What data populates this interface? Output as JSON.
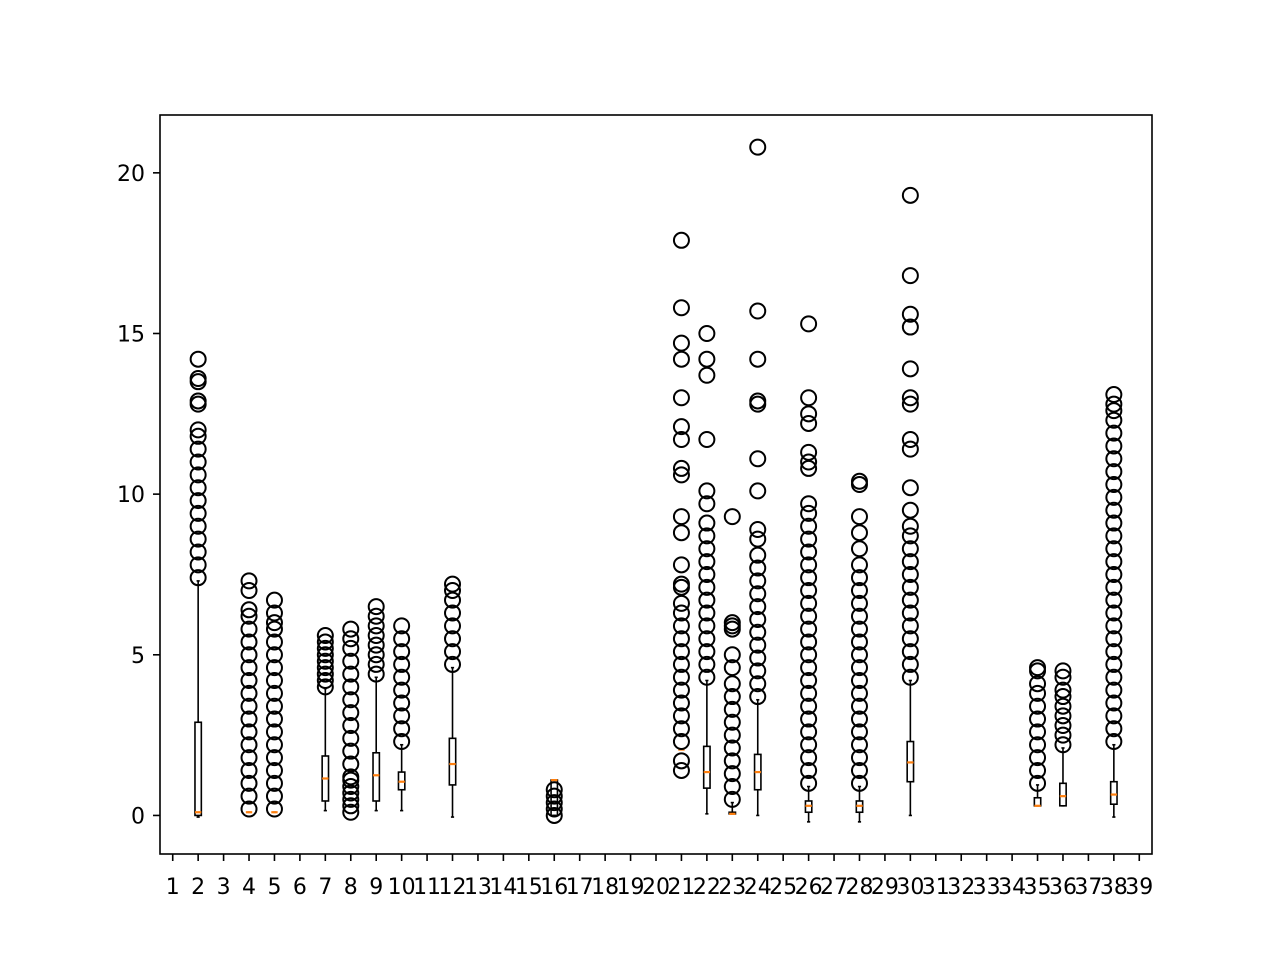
{
  "chart_data": {
    "type": "box",
    "title": "",
    "xlabel": "",
    "ylabel": "",
    "ylim": [
      -1.2,
      21.8
    ],
    "yticks": [
      0,
      5,
      10,
      15,
      20
    ],
    "xticks": [
      "1",
      "2",
      "3",
      "4",
      "5",
      "6",
      "7",
      "8",
      "9",
      "10",
      "11",
      "12",
      "13",
      "14",
      "15",
      "16",
      "17",
      "18",
      "19",
      "20",
      "21",
      "22",
      "23",
      "24",
      "25",
      "26",
      "27",
      "28",
      "29",
      "30",
      "31",
      "32",
      "33",
      "34",
      "35",
      "36",
      "37",
      "38",
      "39"
    ],
    "grid": false,
    "colors": {
      "box": "#000000",
      "median": "#ff7f0e",
      "flier": "#000000"
    },
    "boxes": [
      {
        "x": 2,
        "whislo": -0.05,
        "q1": 0.0,
        "med": 0.1,
        "q3": 2.9,
        "whishi": 7.3,
        "fliers_low": [],
        "fliers_high": [
          7.4,
          7.8,
          8.2,
          8.6,
          9.0,
          9.4,
          9.8,
          10.2,
          10.6,
          11.0,
          11.4,
          11.8,
          12.0,
          12.8,
          12.9,
          13.5,
          13.6,
          14.2
        ]
      },
      {
        "x": 4,
        "whislo": 0.1,
        "q1": 0.1,
        "med": 0.1,
        "q3": 0.1,
        "whishi": 0.1,
        "fliers_low": [],
        "fliers_high": [
          0.2,
          0.6,
          1.0,
          1.4,
          1.8,
          2.2,
          2.6,
          3.0,
          3.4,
          3.8,
          4.2,
          4.6,
          5.0,
          5.4,
          5.8,
          6.2,
          6.4,
          7.0,
          7.3
        ]
      },
      {
        "x": 5,
        "whislo": 0.1,
        "q1": 0.1,
        "med": 0.1,
        "q3": 0.1,
        "whishi": 0.1,
        "fliers_low": [],
        "fliers_high": [
          0.2,
          0.6,
          1.0,
          1.4,
          1.8,
          2.2,
          2.6,
          3.0,
          3.4,
          3.8,
          4.2,
          4.6,
          5.0,
          5.4,
          5.8,
          6.0,
          6.3,
          6.7
        ]
      },
      {
        "x": 7,
        "whislo": 0.15,
        "q1": 0.45,
        "med": 1.15,
        "q3": 1.85,
        "whishi": 3.95,
        "fliers_low": [],
        "fliers_high": [
          4.0,
          4.2,
          4.4,
          4.6,
          4.8,
          5.0,
          5.2,
          5.4,
          5.6
        ]
      },
      {
        "x": 8,
        "whislo": 1.4,
        "q1": 1.4,
        "med": 1.4,
        "q3": 1.4,
        "whishi": 1.4,
        "fliers_low": [
          0.1,
          0.3,
          0.5,
          0.7,
          0.9,
          1.1,
          1.2
        ],
        "fliers_high": [
          1.6,
          2.0,
          2.4,
          2.8,
          3.2,
          3.6,
          4.0,
          4.4,
          4.8,
          5.2,
          5.5,
          5.8
        ]
      },
      {
        "x": 9,
        "whislo": 0.15,
        "q1": 0.45,
        "med": 1.25,
        "q3": 1.95,
        "whishi": 4.3,
        "fliers_low": [],
        "fliers_high": [
          4.4,
          4.7,
          5.0,
          5.3,
          5.6,
          5.9,
          6.2,
          6.5
        ]
      },
      {
        "x": 10,
        "whislo": 0.15,
        "q1": 0.8,
        "med": 1.05,
        "q3": 1.35,
        "whishi": 2.2,
        "fliers_low": [],
        "fliers_high": [
          2.3,
          2.7,
          3.1,
          3.5,
          3.9,
          4.3,
          4.7,
          5.1,
          5.5,
          5.9
        ]
      },
      {
        "x": 12,
        "whislo": -0.05,
        "q1": 0.95,
        "med": 1.6,
        "q3": 2.4,
        "whishi": 4.6,
        "fliers_low": [],
        "fliers_high": [
          4.7,
          5.1,
          5.5,
          5.9,
          6.3,
          6.7,
          7.0,
          7.2
        ]
      },
      {
        "x": 16,
        "whislo": 0.0,
        "q1": 0.0,
        "med": 1.1,
        "q3": 1.1,
        "whishi": 1.1,
        "fliers_low": [],
        "fliers_high": [
          0.0,
          0.2,
          0.4,
          0.6,
          0.8
        ]
      },
      {
        "x": 21,
        "whislo": 2.05,
        "q1": 2.05,
        "med": 2.05,
        "q3": 2.05,
        "whishi": 2.05,
        "fliers_low": [
          1.4,
          1.7
        ],
        "fliers_high": [
          2.3,
          2.7,
          3.1,
          3.5,
          3.9,
          4.3,
          4.7,
          5.1,
          5.5,
          5.9,
          6.3,
          6.6,
          7.1,
          7.2,
          7.8,
          8.8,
          9.3,
          10.6,
          10.8,
          11.7,
          12.1,
          13.0,
          14.2,
          14.7,
          15.8,
          17.9
        ]
      },
      {
        "x": 22,
        "whislo": 0.05,
        "q1": 0.85,
        "med": 1.35,
        "q3": 2.15,
        "whishi": 4.2,
        "fliers_low": [],
        "fliers_high": [
          4.3,
          4.7,
          5.1,
          5.5,
          5.9,
          6.3,
          6.7,
          7.1,
          7.5,
          7.9,
          8.3,
          8.7,
          9.1,
          9.7,
          10.1,
          11.7,
          13.7,
          14.2,
          15.0
        ]
      },
      {
        "x": 23,
        "whislo": 0.05,
        "q1": 0.05,
        "med": 0.05,
        "q3": 0.1,
        "whishi": 0.4,
        "fliers_low": [],
        "fliers_high": [
          0.5,
          0.9,
          1.3,
          1.7,
          2.1,
          2.5,
          2.9,
          3.3,
          3.7,
          4.1,
          4.6,
          5.0,
          5.8,
          5.9,
          6.0,
          9.3
        ]
      },
      {
        "x": 24,
        "whislo": 0.0,
        "q1": 0.8,
        "med": 1.35,
        "q3": 1.9,
        "whishi": 3.6,
        "fliers_low": [],
        "fliers_high": [
          3.7,
          4.1,
          4.5,
          4.9,
          5.3,
          5.7,
          6.1,
          6.5,
          6.9,
          7.3,
          7.7,
          8.1,
          8.6,
          8.9,
          10.1,
          11.1,
          12.8,
          12.9,
          14.2,
          15.7,
          20.8
        ]
      },
      {
        "x": 26,
        "whislo": -0.2,
        "q1": 0.1,
        "med": 0.3,
        "q3": 0.45,
        "whishi": 0.9,
        "fliers_low": [],
        "fliers_high": [
          1.0,
          1.4,
          1.8,
          2.2,
          2.6,
          3.0,
          3.4,
          3.8,
          4.2,
          4.6,
          5.0,
          5.4,
          5.8,
          6.2,
          6.6,
          7.0,
          7.4,
          7.8,
          8.2,
          8.6,
          9.0,
          9.4,
          9.7,
          10.8,
          11.0,
          11.3,
          12.2,
          12.5,
          13.0,
          15.3
        ]
      },
      {
        "x": 28,
        "whislo": -0.2,
        "q1": 0.1,
        "med": 0.3,
        "q3": 0.45,
        "whishi": 0.9,
        "fliers_low": [],
        "fliers_high": [
          1.0,
          1.4,
          1.8,
          2.2,
          2.6,
          3.0,
          3.4,
          3.8,
          4.2,
          4.6,
          5.0,
          5.4,
          5.8,
          6.2,
          6.6,
          7.0,
          7.4,
          7.8,
          8.3,
          8.8,
          9.3,
          10.3,
          10.4
        ]
      },
      {
        "x": 30,
        "whislo": 0.0,
        "q1": 1.05,
        "med": 1.65,
        "q3": 2.3,
        "whishi": 4.2,
        "fliers_low": [],
        "fliers_high": [
          4.3,
          4.7,
          5.1,
          5.5,
          5.9,
          6.3,
          6.7,
          7.1,
          7.5,
          7.9,
          8.3,
          8.7,
          9.0,
          9.5,
          10.2,
          11.4,
          11.7,
          12.8,
          13.0,
          13.9,
          15.2,
          15.6,
          16.8,
          19.3
        ]
      },
      {
        "x": 35,
        "whislo": 0.3,
        "q1": 0.3,
        "med": 0.3,
        "q3": 0.55,
        "whishi": 0.95,
        "fliers_low": [],
        "fliers_high": [
          1.0,
          1.4,
          1.8,
          2.2,
          2.6,
          3.0,
          3.4,
          3.8,
          4.1,
          4.5,
          4.6
        ]
      },
      {
        "x": 36,
        "whislo": 0.3,
        "q1": 0.3,
        "med": 0.6,
        "q3": 1.0,
        "whishi": 2.1,
        "fliers_low": [],
        "fliers_high": [
          2.2,
          2.5,
          2.8,
          3.1,
          3.4,
          3.7,
          3.9,
          4.3,
          4.5
        ]
      },
      {
        "x": 38,
        "whislo": -0.05,
        "q1": 0.35,
        "med": 0.65,
        "q3": 1.05,
        "whishi": 2.2,
        "fliers_low": [],
        "fliers_high": [
          2.3,
          2.7,
          3.1,
          3.5,
          3.9,
          4.3,
          4.7,
          5.1,
          5.5,
          5.9,
          6.3,
          6.7,
          7.1,
          7.5,
          7.9,
          8.3,
          8.7,
          9.1,
          9.5,
          9.9,
          10.3,
          10.7,
          11.1,
          11.5,
          11.9,
          12.3,
          12.6,
          12.8,
          13.1
        ]
      }
    ]
  }
}
